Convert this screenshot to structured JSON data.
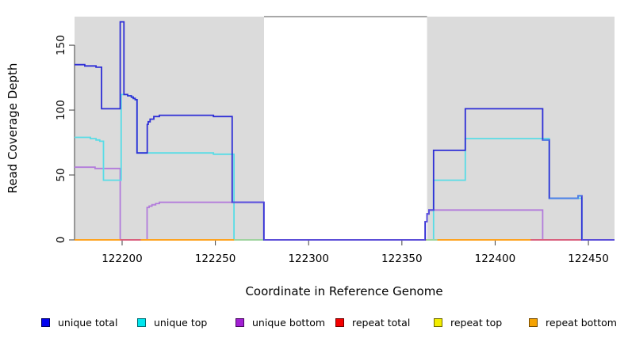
{
  "chart_data": {
    "type": "line",
    "title": "",
    "xlabel": "Coordinate in Reference Genome",
    "ylabel": "Read Coverage Depth",
    "xlim": [
      122174.5,
      122464
    ],
    "ylim": [
      0,
      172
    ],
    "xticks": [
      122200,
      122250,
      122300,
      122350,
      122400,
      122450
    ],
    "yticks": [
      0,
      50,
      100,
      150
    ],
    "grid": false,
    "legend_position": "bottom",
    "plot_bg": "#FFFFFF",
    "shaded_regions": [
      {
        "x1": 122174.5,
        "x2": 122276.1,
        "color": "#DBDBDB"
      },
      {
        "x1": 122363.5,
        "x2": 122464.0,
        "color": "#DBDBDB"
      }
    ],
    "gap_top_border": {
      "x1": 122276.1,
      "x2": 122363.5,
      "y": 172,
      "color": "#8C8C8C"
    },
    "series": [
      {
        "name": "unique total",
        "color": "#2E2ED6",
        "end_x": 122464,
        "points": [
          [
            122174.5,
            135
          ],
          [
            122180,
            134
          ],
          [
            122186,
            133
          ],
          [
            122189,
            101
          ],
          [
            122199,
            168
          ],
          [
            122201,
            112
          ],
          [
            122203,
            111
          ],
          [
            122205,
            110
          ],
          [
            122206,
            109
          ],
          [
            122207,
            108
          ],
          [
            122208,
            67
          ],
          [
            122213.5,
            89
          ],
          [
            122214,
            91
          ],
          [
            122215,
            93
          ],
          [
            122217,
            95
          ],
          [
            122220,
            96
          ],
          [
            122249,
            95
          ],
          [
            122259,
            29
          ],
          [
            122276,
            0
          ],
          [
            122362.5,
            14
          ],
          [
            122363.5,
            20
          ],
          [
            122364.5,
            23
          ],
          [
            122367,
            69
          ],
          [
            122384,
            101
          ],
          [
            122425.5,
            77
          ],
          [
            122429,
            32
          ],
          [
            122444.5,
            34
          ],
          [
            122446.5,
            0
          ]
        ]
      },
      {
        "name": "unique top",
        "color": "#58DCE6",
        "end_x": 122464,
        "points": [
          [
            122174.5,
            79
          ],
          [
            122183,
            78
          ],
          [
            122186,
            77
          ],
          [
            122188,
            76
          ],
          [
            122190,
            46
          ],
          [
            122199.5,
            112
          ],
          [
            122203,
            111
          ],
          [
            122205,
            110
          ],
          [
            122206,
            109
          ],
          [
            122207,
            108
          ],
          [
            122208,
            67
          ],
          [
            122249,
            66
          ],
          [
            122260,
            0
          ],
          [
            122367,
            46
          ],
          [
            122384,
            78
          ],
          [
            122429,
            32
          ],
          [
            122446.5,
            0
          ]
        ]
      },
      {
        "name": "unique bottom",
        "color": "#B27BDB",
        "end_x": 122464,
        "points": [
          [
            122174.5,
            56
          ],
          [
            122185.5,
            55
          ],
          [
            122199,
            0
          ],
          [
            122213.4,
            25
          ],
          [
            122214.5,
            26
          ],
          [
            122216,
            27
          ],
          [
            122218,
            28
          ],
          [
            122220,
            29
          ],
          [
            122276,
            0
          ],
          [
            122362.5,
            14
          ],
          [
            122363.5,
            20
          ],
          [
            122364.5,
            23
          ],
          [
            122425.5,
            0
          ]
        ]
      },
      {
        "name": "repeat total",
        "color": "#E8312F",
        "end_x": 122464,
        "points": [
          [
            122174.5,
            0
          ]
        ]
      },
      {
        "name": "repeat top",
        "color": "#F2ED30",
        "end_x": 122464,
        "points": [
          [
            122174.5,
            0
          ]
        ]
      },
      {
        "name": "repeat bottom",
        "color": "#FF9E1E",
        "end_x": 122464,
        "points": [
          [
            122174.5,
            0
          ]
        ]
      }
    ],
    "draw_order": [
      "unique bottom",
      "unique top",
      "repeat total",
      "repeat top",
      "repeat bottom",
      "#blends",
      "unique total",
      "#overlays"
    ],
    "blend_segments": [
      {
        "color": "#D9607E",
        "x1": 122199,
        "x2": 122210,
        "y": 0
      },
      {
        "color": "#9FD39F",
        "x1": 122260,
        "x2": 122276,
        "y": 0
      },
      {
        "color": "#9FD39F",
        "x1": 122363,
        "x2": 122369,
        "y": 0
      },
      {
        "color": "#D9607E",
        "x1": 122419,
        "x2": 122446.5,
        "y": 0
      }
    ],
    "blend_overlays": [
      {
        "color": "#5B4FDE",
        "end_x": 122362.5,
        "points": [
          [
            122276,
            0
          ]
        ]
      },
      {
        "color": "#5B4FDE",
        "end_x": 122367,
        "points": [
          [
            122362.5,
            14
          ],
          [
            122363.5,
            20
          ],
          [
            122364.5,
            23
          ]
        ]
      },
      {
        "color": "#5B4FDE",
        "end_x": 122276,
        "points": [
          [
            122259,
            29
          ]
        ]
      },
      {
        "color": "#4C86E8",
        "end_x": 122429,
        "points": [
          [
            122425.5,
            77
          ]
        ]
      },
      {
        "color": "#4C86E8",
        "end_x": 122446.5,
        "points": [
          [
            122429,
            32
          ],
          [
            122444.5,
            34
          ]
        ]
      },
      {
        "color": "#5B4FDE",
        "end_x": 122464,
        "points": [
          [
            122446.5,
            0
          ]
        ]
      }
    ]
  },
  "legend": {
    "items": [
      {
        "label": "unique total",
        "fill": "#0202F0",
        "border": "#000060"
      },
      {
        "label": "unique top",
        "fill": "#00E6EE",
        "border": "#006E74"
      },
      {
        "label": "unique bottom",
        "fill": "#A21FD3",
        "border": "#47085F"
      },
      {
        "label": "repeat total",
        "fill": "#F40000",
        "border": "#700000"
      },
      {
        "label": "repeat top",
        "fill": "#F2ED00",
        "border": "#6E6A00"
      },
      {
        "label": "repeat bottom",
        "fill": "#F5A302",
        "border": "#744A00"
      }
    ]
  },
  "axis_colors": {
    "tick": "#404040",
    "axis_line": "#404040"
  }
}
